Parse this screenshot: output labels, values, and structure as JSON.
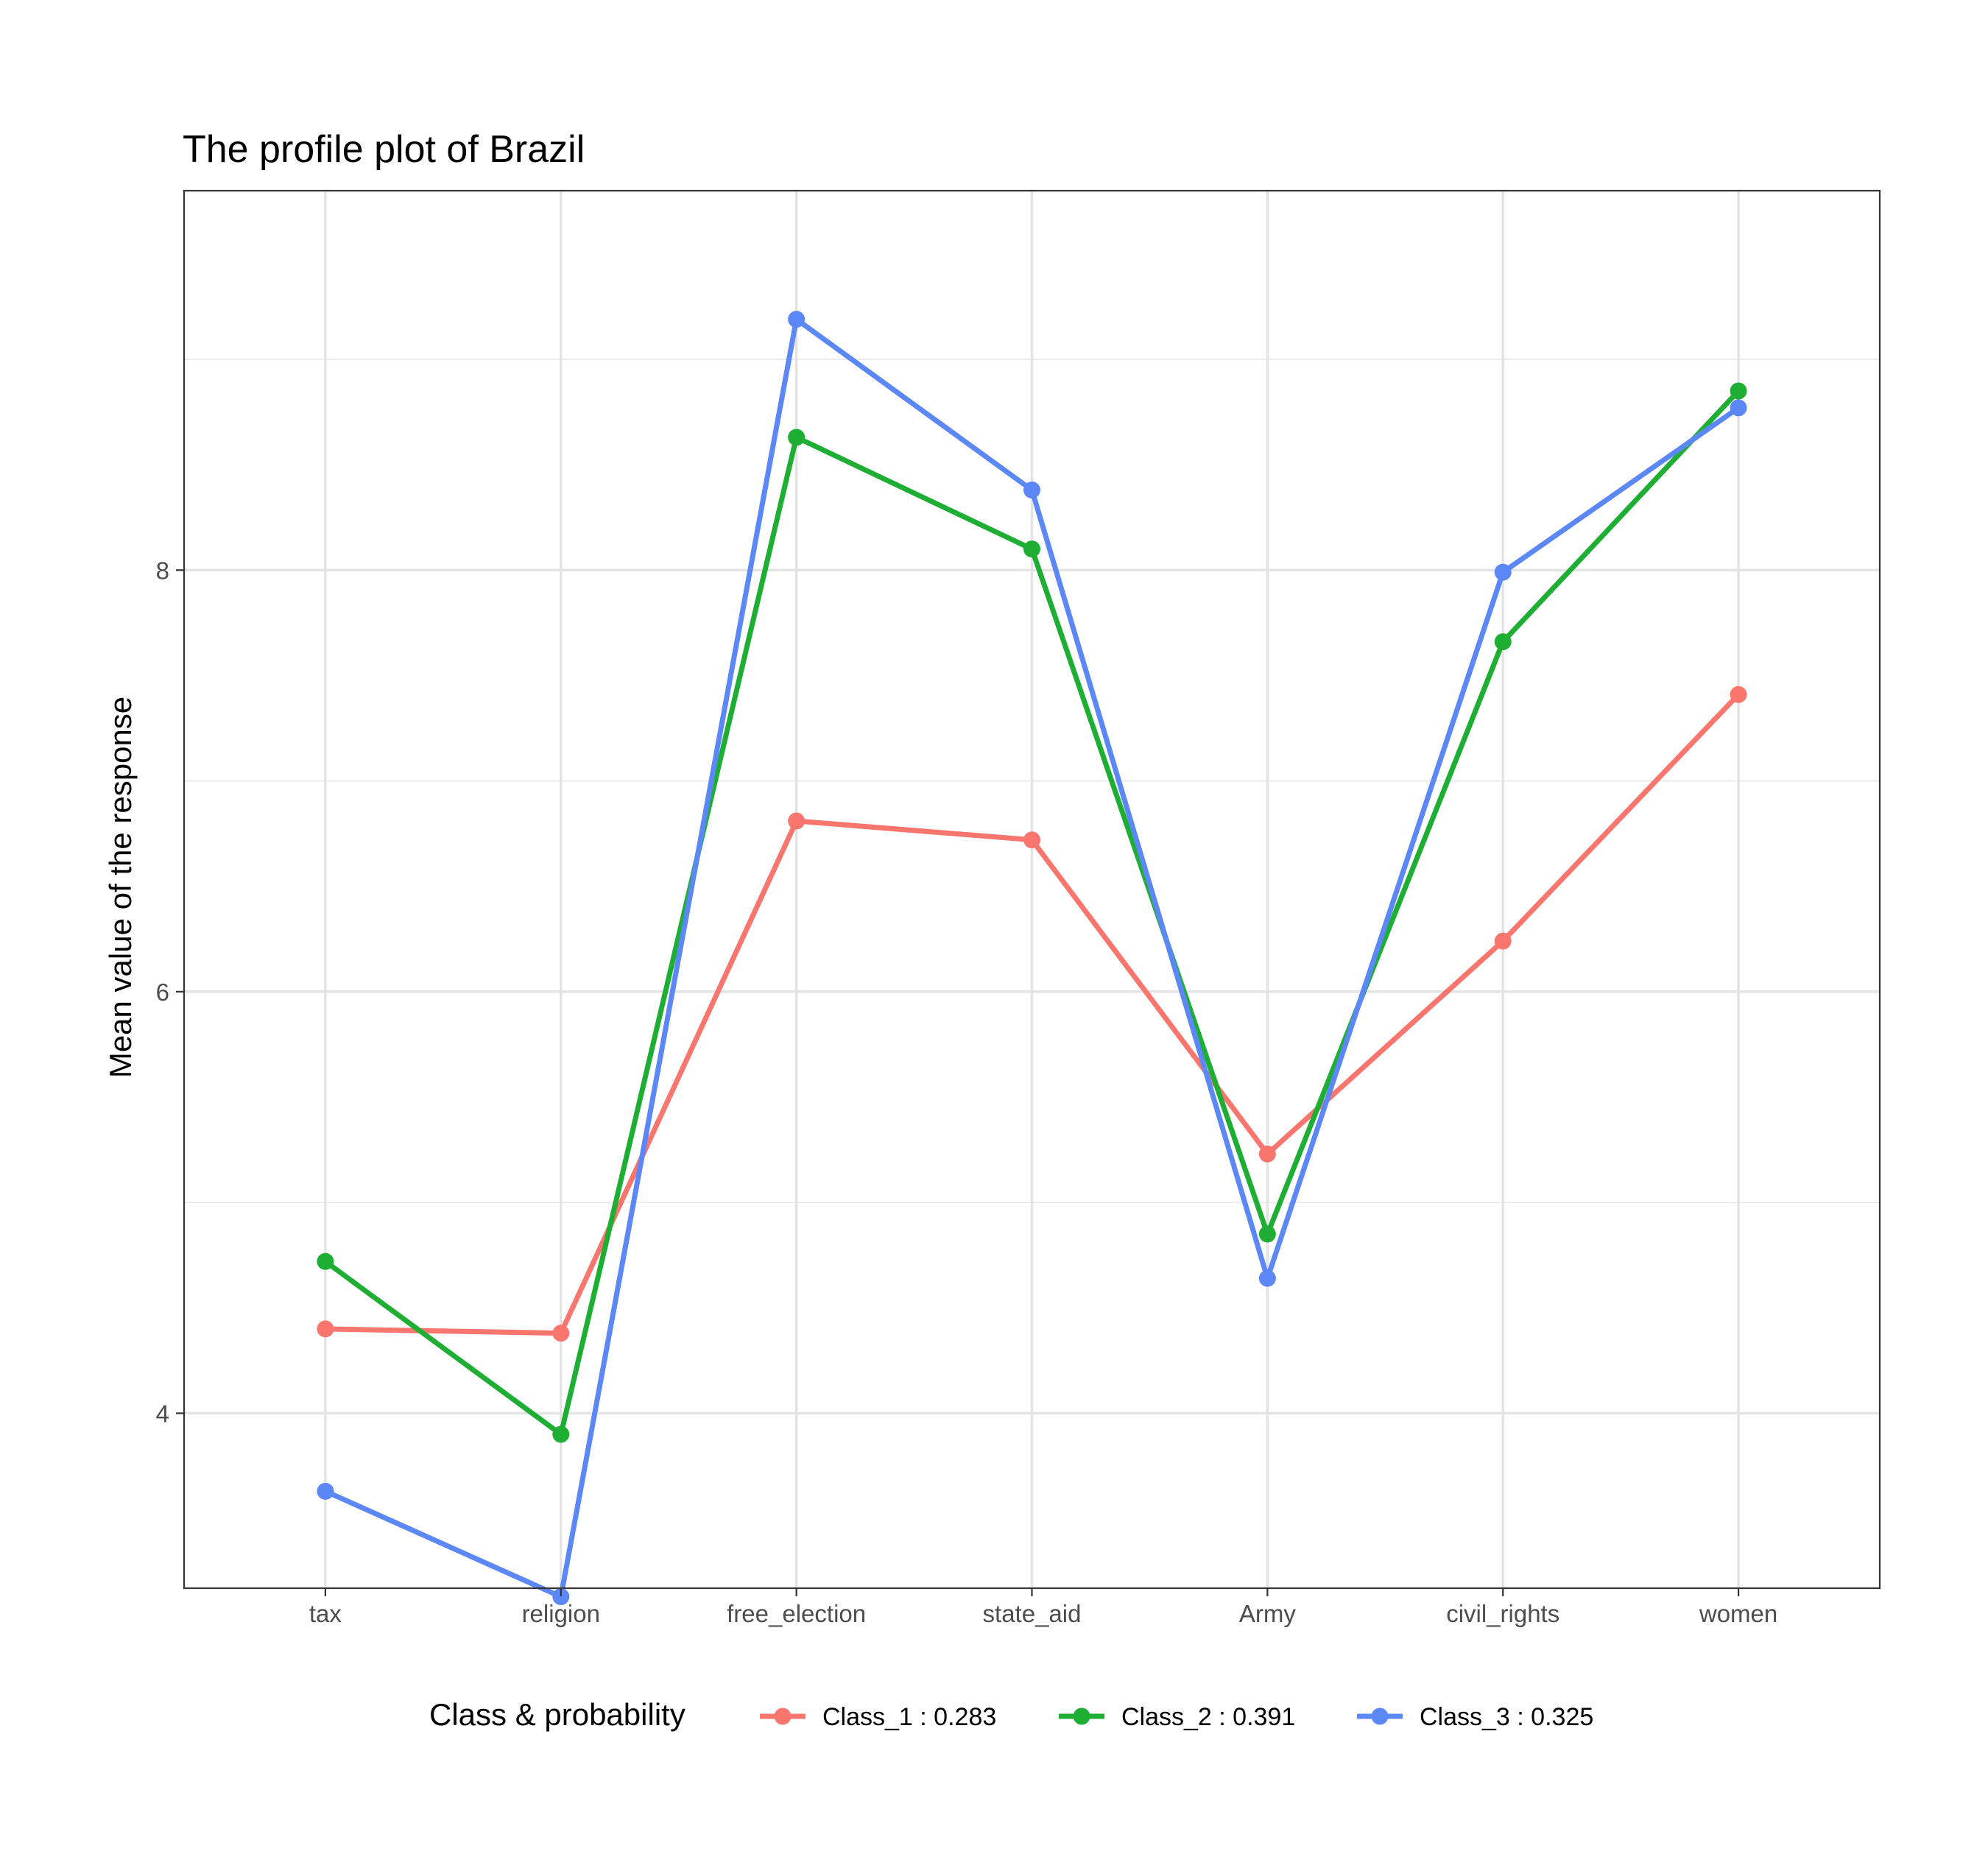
{
  "chart_data": {
    "type": "line",
    "title": "The profile plot of Brazil",
    "xlabel": "",
    "ylabel": "Mean value of the response",
    "categories": [
      "tax",
      "religion",
      "free_election",
      "state_aid",
      "Army",
      "civil_rights",
      "women"
    ],
    "ylim": [
      3.17,
      9.8
    ],
    "yticks": [
      4,
      6,
      8
    ],
    "grid": true,
    "legend": {
      "title": "Class & probability",
      "placement": "bottom"
    },
    "series": [
      {
        "name": "Class_1 : 0.283",
        "color": "#F8766D",
        "values": [
          4.4,
          4.38,
          6.81,
          6.72,
          5.23,
          6.24,
          7.41
        ]
      },
      {
        "name": "Class_2 : 0.391",
        "color": "#1EAE34",
        "values": [
          4.72,
          3.9,
          8.63,
          8.1,
          4.85,
          7.66,
          8.85
        ]
      },
      {
        "name": "Class_3 : 0.325",
        "color": "#5B87F7",
        "values": [
          3.63,
          3.13,
          9.19,
          8.38,
          4.64,
          7.99,
          8.77
        ]
      }
    ]
  }
}
